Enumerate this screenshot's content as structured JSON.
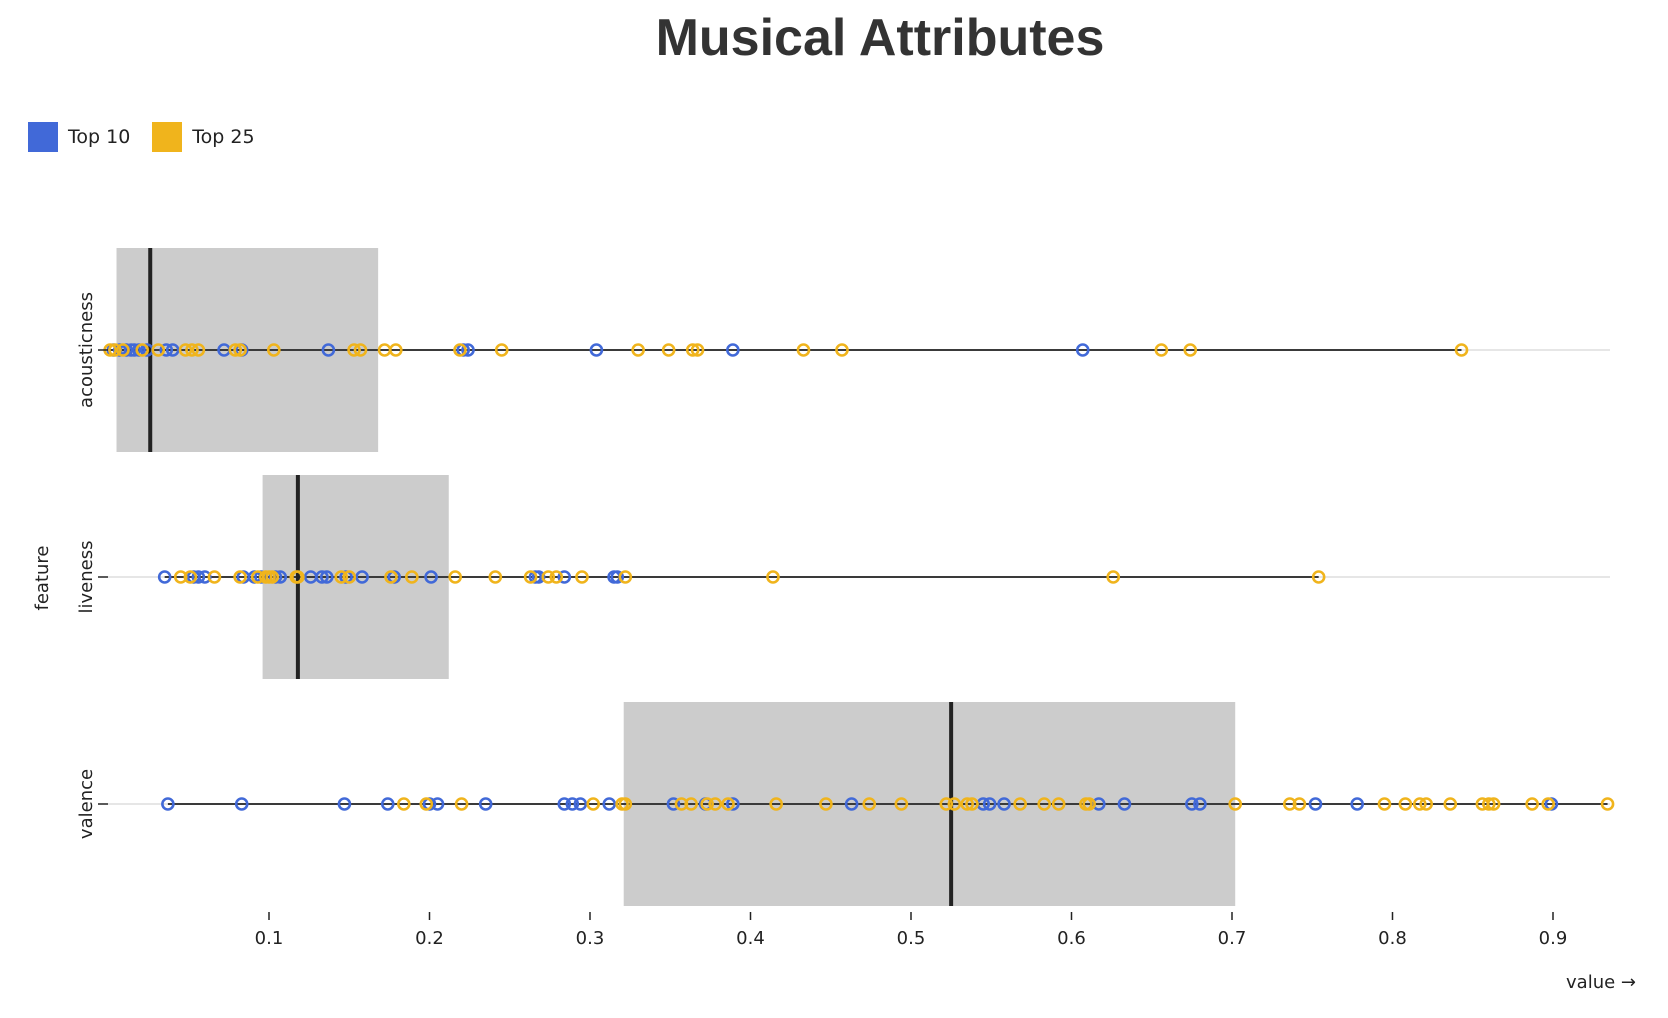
{
  "chart_data": {
    "type": "scatter",
    "title": "Musical Attributes",
    "xlabel": "value →",
    "ylabel": "feature",
    "xlim": [
      0,
      0.94
    ],
    "x_ticks": [
      "0.1",
      "0.2",
      "0.3",
      "0.4",
      "0.5",
      "0.6",
      "0.7",
      "0.8",
      "0.9"
    ],
    "legend_placement": "top-left",
    "legend": [
      {
        "name": "Top 10",
        "color": "#4169d8"
      },
      {
        "name": "Top 25",
        "color": "#f0b41c"
      }
    ],
    "categories": [
      "acousticness",
      "liveness",
      "valence"
    ],
    "boxes": [
      {
        "feature": "acousticness",
        "q1": 0.005,
        "median": 0.026,
        "q3": 0.168,
        "min": 0.0,
        "max": 0.843
      },
      {
        "feature": "liveness",
        "q1": 0.096,
        "median": 0.118,
        "q3": 0.212,
        "min": 0.035,
        "max": 0.754
      },
      {
        "feature": "valence",
        "q1": 0.321,
        "median": 0.525,
        "q3": 0.702,
        "min": 0.037,
        "max": 0.934
      }
    ],
    "series": [
      {
        "name": "Top 10",
        "color": "#4169d8",
        "points": {
          "acousticness": [
            0.003,
            0.007,
            0.011,
            0.014,
            0.016,
            0.019,
            0.024,
            0.036,
            0.04,
            0.072,
            0.083,
            0.137,
            0.221,
            0.224,
            0.304,
            0.389,
            0.607
          ],
          "liveness": [
            0.035,
            0.053,
            0.056,
            0.06,
            0.084,
            0.091,
            0.095,
            0.104,
            0.107,
            0.126,
            0.133,
            0.136,
            0.148,
            0.158,
            0.178,
            0.201,
            0.266,
            0.268,
            0.284,
            0.315,
            0.317
          ],
          "valence": [
            0.037,
            0.083,
            0.147,
            0.174,
            0.2,
            0.205,
            0.235,
            0.284,
            0.289,
            0.294,
            0.312,
            0.352,
            0.372,
            0.389,
            0.463,
            0.545,
            0.549,
            0.558,
            0.617,
            0.633,
            0.675,
            0.68,
            0.752,
            0.778,
            0.899
          ]
        }
      },
      {
        "name": "Top 25",
        "color": "#f0b41c",
        "points": {
          "acousticness": [
            0.001,
            0.004,
            0.009,
            0.021,
            0.031,
            0.048,
            0.052,
            0.056,
            0.079,
            0.082,
            0.103,
            0.153,
            0.157,
            0.172,
            0.179,
            0.219,
            0.245,
            0.33,
            0.349,
            0.364,
            0.367,
            0.433,
            0.457,
            0.656,
            0.674,
            0.843
          ],
          "liveness": [
            0.045,
            0.051,
            0.066,
            0.082,
            0.093,
            0.098,
            0.1,
            0.102,
            0.117,
            0.118,
            0.145,
            0.15,
            0.176,
            0.189,
            0.216,
            0.241,
            0.263,
            0.274,
            0.279,
            0.295,
            0.322,
            0.414,
            0.626,
            0.754
          ],
          "valence": [
            0.184,
            0.198,
            0.22,
            0.302,
            0.32,
            0.322,
            0.357,
            0.363,
            0.373,
            0.378,
            0.386,
            0.416,
            0.447,
            0.474,
            0.494,
            0.522,
            0.527,
            0.535,
            0.538,
            0.568,
            0.583,
            0.592,
            0.609,
            0.611,
            0.702,
            0.736,
            0.742,
            0.795,
            0.808,
            0.817,
            0.821,
            0.836,
            0.856,
            0.86,
            0.863,
            0.887,
            0.897,
            0.934
          ]
        }
      }
    ]
  }
}
